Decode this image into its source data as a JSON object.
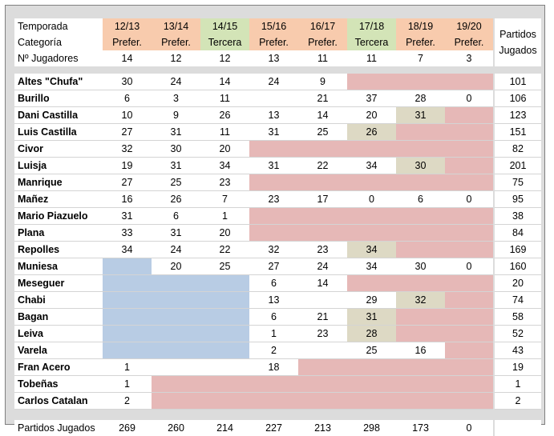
{
  "header": {
    "temporada_label": "Temporada",
    "categoria_label": "Categoría",
    "jugadores_label": "Nº Jugadores",
    "partidos_jugados_header": [
      "Partidos",
      "Jugados"
    ],
    "seasons": [
      "12/13",
      "13/14",
      "14/15",
      "15/16",
      "16/17",
      "17/18",
      "18/19",
      "19/20"
    ],
    "categories": [
      "Prefer.",
      "Prefer.",
      "Tercera",
      "Prefer.",
      "Prefer.",
      "Tercera",
      "Prefer.",
      "Prefer."
    ],
    "player_counts": [
      "14",
      "12",
      "12",
      "13",
      "11",
      "11",
      "7",
      "3"
    ]
  },
  "colors": {
    "preferente_header": "#f8cbad",
    "tercera_header": "#d3e4b7",
    "not_in_team": "#e6b8b7",
    "before_joining": "#b8cce4",
    "highlight": "#ddd9c4",
    "frame": "#dcdcdc"
  },
  "players": [
    {
      "name": "Altes \"Chufa\"",
      "values": [
        "30",
        "24",
        "14",
        "24",
        "9",
        "",
        "",
        ""
      ],
      "total": "101"
    },
    {
      "name": "Burillo",
      "values": [
        "6",
        "3",
        "11",
        "",
        "21",
        "37",
        "28",
        "0"
      ],
      "total": "106"
    },
    {
      "name": "Dani Castilla",
      "values": [
        "10",
        "9",
        "26",
        "13",
        "14",
        "20",
        "31",
        ""
      ],
      "total": "123"
    },
    {
      "name": "Luis Castilla",
      "values": [
        "27",
        "31",
        "11",
        "31",
        "25",
        "26",
        "",
        ""
      ],
      "total": "151"
    },
    {
      "name": "Civor",
      "values": [
        "32",
        "30",
        "20",
        "",
        "",
        "",
        "",
        ""
      ],
      "total": "82"
    },
    {
      "name": "Luisja",
      "values": [
        "19",
        "31",
        "34",
        "31",
        "22",
        "34",
        "30",
        ""
      ],
      "total": "201"
    },
    {
      "name": "Manrique",
      "values": [
        "27",
        "25",
        "23",
        "",
        "",
        "",
        "",
        ""
      ],
      "total": "75"
    },
    {
      "name": "Mañez",
      "values": [
        "16",
        "26",
        "7",
        "23",
        "17",
        "0",
        "6",
        "0"
      ],
      "total": "95"
    },
    {
      "name": "Mario Piazuelo",
      "values": [
        "31",
        "6",
        "1",
        "",
        "",
        "",
        "",
        ""
      ],
      "total": "38"
    },
    {
      "name": "Plana",
      "values": [
        "33",
        "31",
        "20",
        "",
        "",
        "",
        "",
        ""
      ],
      "total": "84"
    },
    {
      "name": "Repolles",
      "values": [
        "34",
        "24",
        "22",
        "32",
        "23",
        "34",
        "",
        ""
      ],
      "total": "169"
    },
    {
      "name": "Muniesa",
      "values": [
        "",
        "20",
        "25",
        "27",
        "24",
        "34",
        "30",
        "0"
      ],
      "total": "160"
    },
    {
      "name": "Meseguer",
      "values": [
        "",
        "",
        "",
        "6",
        "14",
        "",
        "",
        ""
      ],
      "total": "20"
    },
    {
      "name": "Chabi",
      "values": [
        "",
        "",
        "",
        "13",
        "",
        "29",
        "32",
        ""
      ],
      "total": "74"
    },
    {
      "name": "Bagan",
      "values": [
        "",
        "",
        "",
        "6",
        "21",
        "31",
        "",
        ""
      ],
      "total": "58"
    },
    {
      "name": "Leiva",
      "values": [
        "",
        "",
        "",
        "1",
        "23",
        "28",
        "",
        ""
      ],
      "total": "52"
    },
    {
      "name": "Varela",
      "values": [
        "",
        "",
        "",
        "2",
        "",
        "25",
        "16",
        ""
      ],
      "total": "43"
    },
    {
      "name": "Fran Acero",
      "values": [
        "1",
        "",
        "",
        "18",
        "",
        "",
        "",
        ""
      ],
      "total": "19"
    },
    {
      "name": "Tobeñas",
      "values": [
        "1",
        "",
        "",
        "",
        "",
        "",
        "",
        ""
      ],
      "total": "1"
    },
    {
      "name": "Carlos Catalan",
      "values": [
        "2",
        "",
        "",
        "",
        "",
        "",
        "",
        ""
      ],
      "total": "2"
    }
  ],
  "footer": {
    "label": "Partidos Jugados",
    "season_totals": [
      "269",
      "260",
      "214",
      "227",
      "213",
      "298",
      "173",
      "0"
    ]
  }
}
